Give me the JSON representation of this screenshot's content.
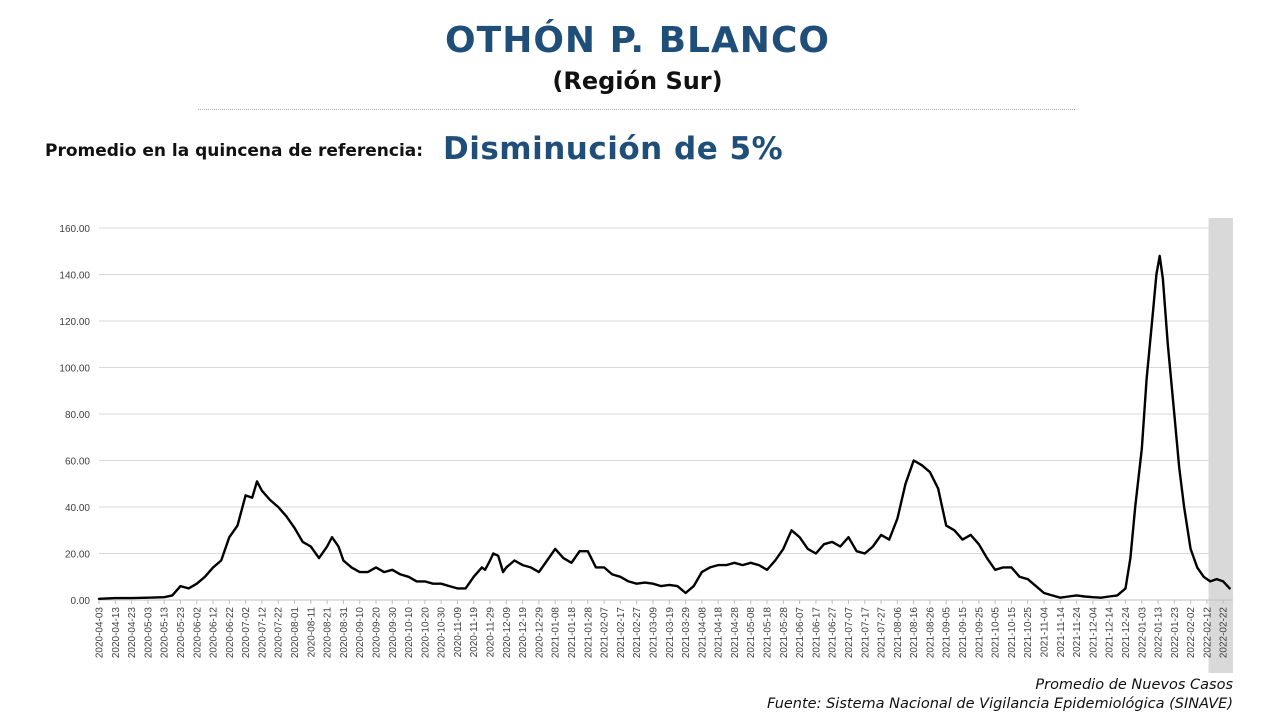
{
  "header": {
    "title": "OTHÓN P. BLANCO",
    "subtitle": "(Región Sur)"
  },
  "reference": {
    "label": "Promedio en la quincena de referencia:",
    "value": "Disminución de 5%"
  },
  "footer": {
    "caption": "Promedio de Nuevos Casos",
    "source": "Fuente: Sistema Nacional de Vigilancia Epidemiológica (SINAVE)"
  },
  "chart_data": {
    "type": "line",
    "title": "",
    "xlabel": "",
    "ylabel": "",
    "ylim": [
      0,
      160
    ],
    "yticks": [
      "0.00",
      "20.00",
      "40.00",
      "60.00",
      "80.00",
      "100.00",
      "120.00",
      "140.00",
      "160.00"
    ],
    "grid": true,
    "shaded_region": {
      "from": "2022-02-13",
      "to": "2022-02-28",
      "color": "#d9d9d9"
    },
    "line_color": "#000000",
    "x_tick_labels": [
      "2020-04-03",
      "2020-04-13",
      "2020-04-23",
      "2020-05-03",
      "2020-05-13",
      "2020-05-23",
      "2020-06-02",
      "2020-06-12",
      "2020-06-22",
      "2020-07-02",
      "2020-07-12",
      "2020-07-22",
      "2020-08-01",
      "2020-08-11",
      "2020-08-21",
      "2020-08-31",
      "2020-09-10",
      "2020-09-20",
      "2020-09-30",
      "2020-10-10",
      "2020-10-20",
      "2020-10-30",
      "2020-11-09",
      "2020-11-19",
      "2020-11-29",
      "2020-12-09",
      "2020-12-19",
      "2020-12-29",
      "2021-01-08",
      "2021-01-18",
      "2021-01-28",
      "2021-02-07",
      "2021-02-17",
      "2021-02-27",
      "2021-03-09",
      "2021-03-19",
      "2021-03-29",
      "2021-04-08",
      "2021-04-18",
      "2021-04-28",
      "2021-05-08",
      "2021-05-18",
      "2021-05-28",
      "2021-06-07",
      "2021-06-17",
      "2021-06-27",
      "2021-07-07",
      "2021-07-17",
      "2021-07-27",
      "2021-08-06",
      "2021-08-16",
      "2021-08-26",
      "2021-09-05",
      "2021-09-15",
      "2021-09-25",
      "2021-10-05",
      "2021-10-15",
      "2021-10-25",
      "2021-11-04",
      "2021-11-14",
      "2021-11-24",
      "2021-12-04",
      "2021-12-14",
      "2021-12-24",
      "2022-01-03",
      "2022-01-13",
      "2022-01-23",
      "2022-02-02",
      "2022-02-12",
      "2022-02-22"
    ],
    "series": [
      {
        "points": [
          [
            "2020-04-03",
            0.5
          ],
          [
            "2020-04-13",
            0.8
          ],
          [
            "2020-04-23",
            0.8
          ],
          [
            "2020-05-03",
            1.0
          ],
          [
            "2020-05-13",
            1.2
          ],
          [
            "2020-05-18",
            2.0
          ],
          [
            "2020-05-23",
            6.0
          ],
          [
            "2020-05-28",
            5.0
          ],
          [
            "2020-06-02",
            7.0
          ],
          [
            "2020-06-07",
            10.0
          ],
          [
            "2020-06-12",
            14.0
          ],
          [
            "2020-06-17",
            17.0
          ],
          [
            "2020-06-22",
            27.0
          ],
          [
            "2020-06-27",
            32.0
          ],
          [
            "2020-07-02",
            45.0
          ],
          [
            "2020-07-06",
            44.0
          ],
          [
            "2020-07-09",
            51.0
          ],
          [
            "2020-07-12",
            47.0
          ],
          [
            "2020-07-17",
            43.0
          ],
          [
            "2020-07-22",
            40.0
          ],
          [
            "2020-07-27",
            36.0
          ],
          [
            "2020-08-01",
            31.0
          ],
          [
            "2020-08-06",
            25.0
          ],
          [
            "2020-08-11",
            23.0
          ],
          [
            "2020-08-16",
            18.0
          ],
          [
            "2020-08-21",
            23.0
          ],
          [
            "2020-08-24",
            27.0
          ],
          [
            "2020-08-28",
            23.0
          ],
          [
            "2020-08-31",
            17.0
          ],
          [
            "2020-09-05",
            14.0
          ],
          [
            "2020-09-10",
            12.0
          ],
          [
            "2020-09-15",
            12.0
          ],
          [
            "2020-09-20",
            14.0
          ],
          [
            "2020-09-25",
            12.0
          ],
          [
            "2020-09-30",
            13.0
          ],
          [
            "2020-10-05",
            11.0
          ],
          [
            "2020-10-10",
            10.0
          ],
          [
            "2020-10-15",
            8.0
          ],
          [
            "2020-10-20",
            8.0
          ],
          [
            "2020-10-25",
            7.0
          ],
          [
            "2020-10-30",
            7.0
          ],
          [
            "2020-11-04",
            6.0
          ],
          [
            "2020-11-09",
            5.0
          ],
          [
            "2020-11-14",
            5.0
          ],
          [
            "2020-11-19",
            10.0
          ],
          [
            "2020-11-24",
            14.0
          ],
          [
            "2020-11-26",
            13.0
          ],
          [
            "2020-11-29",
            17.0
          ],
          [
            "2020-12-01",
            20.0
          ],
          [
            "2020-12-04",
            19.0
          ],
          [
            "2020-12-07",
            12.0
          ],
          [
            "2020-12-09",
            14.0
          ],
          [
            "2020-12-14",
            17.0
          ],
          [
            "2020-12-19",
            15.0
          ],
          [
            "2020-12-24",
            14.0
          ],
          [
            "2020-12-29",
            12.0
          ],
          [
            "2021-01-03",
            17.0
          ],
          [
            "2021-01-08",
            22.0
          ],
          [
            "2021-01-13",
            18.0
          ],
          [
            "2021-01-18",
            16.0
          ],
          [
            "2021-01-23",
            21.0
          ],
          [
            "2021-01-28",
            21.0
          ],
          [
            "2021-02-02",
            14.0
          ],
          [
            "2021-02-07",
            14.0
          ],
          [
            "2021-02-12",
            11.0
          ],
          [
            "2021-02-17",
            10.0
          ],
          [
            "2021-02-22",
            8.0
          ],
          [
            "2021-02-27",
            7.0
          ],
          [
            "2021-03-04",
            7.5
          ],
          [
            "2021-03-09",
            7.0
          ],
          [
            "2021-03-14",
            6.0
          ],
          [
            "2021-03-19",
            6.5
          ],
          [
            "2021-03-24",
            6.0
          ],
          [
            "2021-03-29",
            3.0
          ],
          [
            "2021-04-03",
            6.0
          ],
          [
            "2021-04-08",
            12.0
          ],
          [
            "2021-04-13",
            14.0
          ],
          [
            "2021-04-18",
            15.0
          ],
          [
            "2021-04-23",
            15.0
          ],
          [
            "2021-04-28",
            16.0
          ],
          [
            "2021-05-03",
            15.0
          ],
          [
            "2021-05-08",
            16.0
          ],
          [
            "2021-05-13",
            15.0
          ],
          [
            "2021-05-18",
            13.0
          ],
          [
            "2021-05-23",
            17.0
          ],
          [
            "2021-05-28",
            22.0
          ],
          [
            "2021-06-02",
            30.0
          ],
          [
            "2021-06-07",
            27.0
          ],
          [
            "2021-06-12",
            22.0
          ],
          [
            "2021-06-17",
            20.0
          ],
          [
            "2021-06-22",
            24.0
          ],
          [
            "2021-06-27",
            25.0
          ],
          [
            "2021-07-02",
            23.0
          ],
          [
            "2021-07-07",
            27.0
          ],
          [
            "2021-07-12",
            21.0
          ],
          [
            "2021-07-17",
            20.0
          ],
          [
            "2021-07-22",
            23.0
          ],
          [
            "2021-07-27",
            28.0
          ],
          [
            "2021-08-01",
            26.0
          ],
          [
            "2021-08-06",
            35.0
          ],
          [
            "2021-08-11",
            50.0
          ],
          [
            "2021-08-16",
            60.0
          ],
          [
            "2021-08-21",
            58.0
          ],
          [
            "2021-08-26",
            55.0
          ],
          [
            "2021-08-31",
            48.0
          ],
          [
            "2021-09-05",
            32.0
          ],
          [
            "2021-09-10",
            30.0
          ],
          [
            "2021-09-15",
            26.0
          ],
          [
            "2021-09-20",
            28.0
          ],
          [
            "2021-09-25",
            24.0
          ],
          [
            "2021-09-30",
            18.0
          ],
          [
            "2021-10-05",
            13.0
          ],
          [
            "2021-10-10",
            14.0
          ],
          [
            "2021-10-15",
            14.0
          ],
          [
            "2021-10-20",
            10.0
          ],
          [
            "2021-10-25",
            9.0
          ],
          [
            "2021-10-30",
            6.0
          ],
          [
            "2021-11-04",
            3.0
          ],
          [
            "2021-11-09",
            2.0
          ],
          [
            "2021-11-14",
            1.0
          ],
          [
            "2021-11-19",
            1.5
          ],
          [
            "2021-11-24",
            2.0
          ],
          [
            "2021-11-29",
            1.5
          ],
          [
            "2021-12-04",
            1.2
          ],
          [
            "2021-12-09",
            1.0
          ],
          [
            "2021-12-14",
            1.5
          ],
          [
            "2021-12-19",
            2.0
          ],
          [
            "2021-12-24",
            5.0
          ],
          [
            "2021-12-27",
            18.0
          ],
          [
            "2021-12-30",
            40.0
          ],
          [
            "2022-01-03",
            65.0
          ],
          [
            "2022-01-06",
            95.0
          ],
          [
            "2022-01-08",
            110.0
          ],
          [
            "2022-01-10",
            125.0
          ],
          [
            "2022-01-12",
            140.0
          ],
          [
            "2022-01-14",
            148.0
          ],
          [
            "2022-01-16",
            138.0
          ],
          [
            "2022-01-19",
            110.0
          ],
          [
            "2022-01-23",
            80.0
          ],
          [
            "2022-01-26",
            57.0
          ],
          [
            "2022-01-29",
            40.0
          ],
          [
            "2022-02-02",
            22.0
          ],
          [
            "2022-02-06",
            14.0
          ],
          [
            "2022-02-10",
            10.0
          ],
          [
            "2022-02-14",
            8.0
          ],
          [
            "2022-02-18",
            9.0
          ],
          [
            "2022-02-22",
            8.0
          ],
          [
            "2022-02-26",
            5.0
          ]
        ]
      }
    ]
  }
}
